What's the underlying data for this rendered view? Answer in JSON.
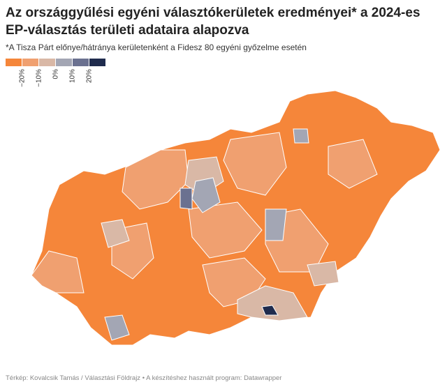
{
  "header": {
    "title": "Az országgyűlési egyéni választókerületek eredményei* a 2024-es EP-választás területi adataira alapozva",
    "subtitle": "*A Tisza Párt előnye/hátránya kerületenként a Fidesz 80 egyéni győzelme esetén"
  },
  "legend": {
    "colors": [
      "#f5863a",
      "#f0a070",
      "#d9b8a6",
      "#a3a6b4",
      "#6b7190",
      "#1f2b4d"
    ],
    "labels": [
      "−20%",
      "−10%",
      "0%",
      "10%",
      "20%"
    ]
  },
  "footer": "Térkép: Kovalcsik Tamás / Választási Földrajz • A készítéshez használt program: Datawrapper"
}
